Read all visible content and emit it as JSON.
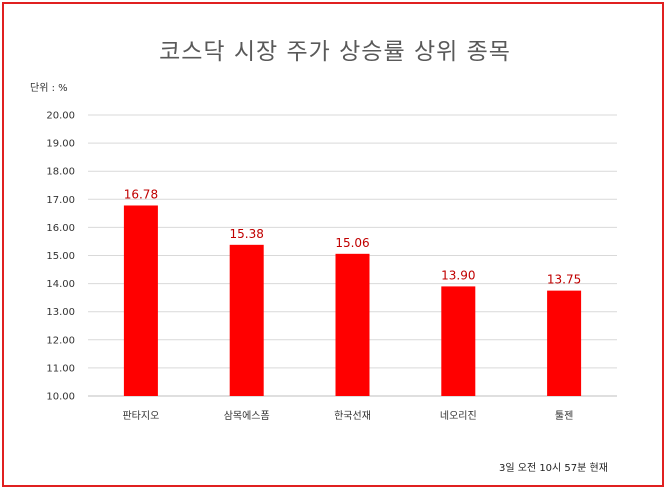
{
  "chart_data": {
    "type": "bar",
    "title": "코스닥 시장 주가 상승률 상위 종목",
    "unit_label": "단위 : %",
    "categories": [
      "판타지오",
      "삼목에스폼",
      "한국선재",
      "네오리진",
      "툴젠"
    ],
    "values": [
      16.78,
      15.38,
      15.06,
      13.9,
      13.75
    ],
    "data_labels": [
      "16.78",
      "15.38",
      "15.06",
      "13.90",
      "13.75"
    ],
    "ylim": [
      10,
      20
    ],
    "yticks": [
      "10.00",
      "11.00",
      "12.00",
      "13.00",
      "14.00",
      "15.00",
      "16.00",
      "17.00",
      "18.00",
      "19.00",
      "20.00"
    ],
    "grid": true,
    "bar_color": "#ff0000",
    "label_color": "#c00000",
    "xlabel": "",
    "ylabel": ""
  },
  "footnote": "3일 오전 10시 57분 현재",
  "frame_color": "#e02020"
}
